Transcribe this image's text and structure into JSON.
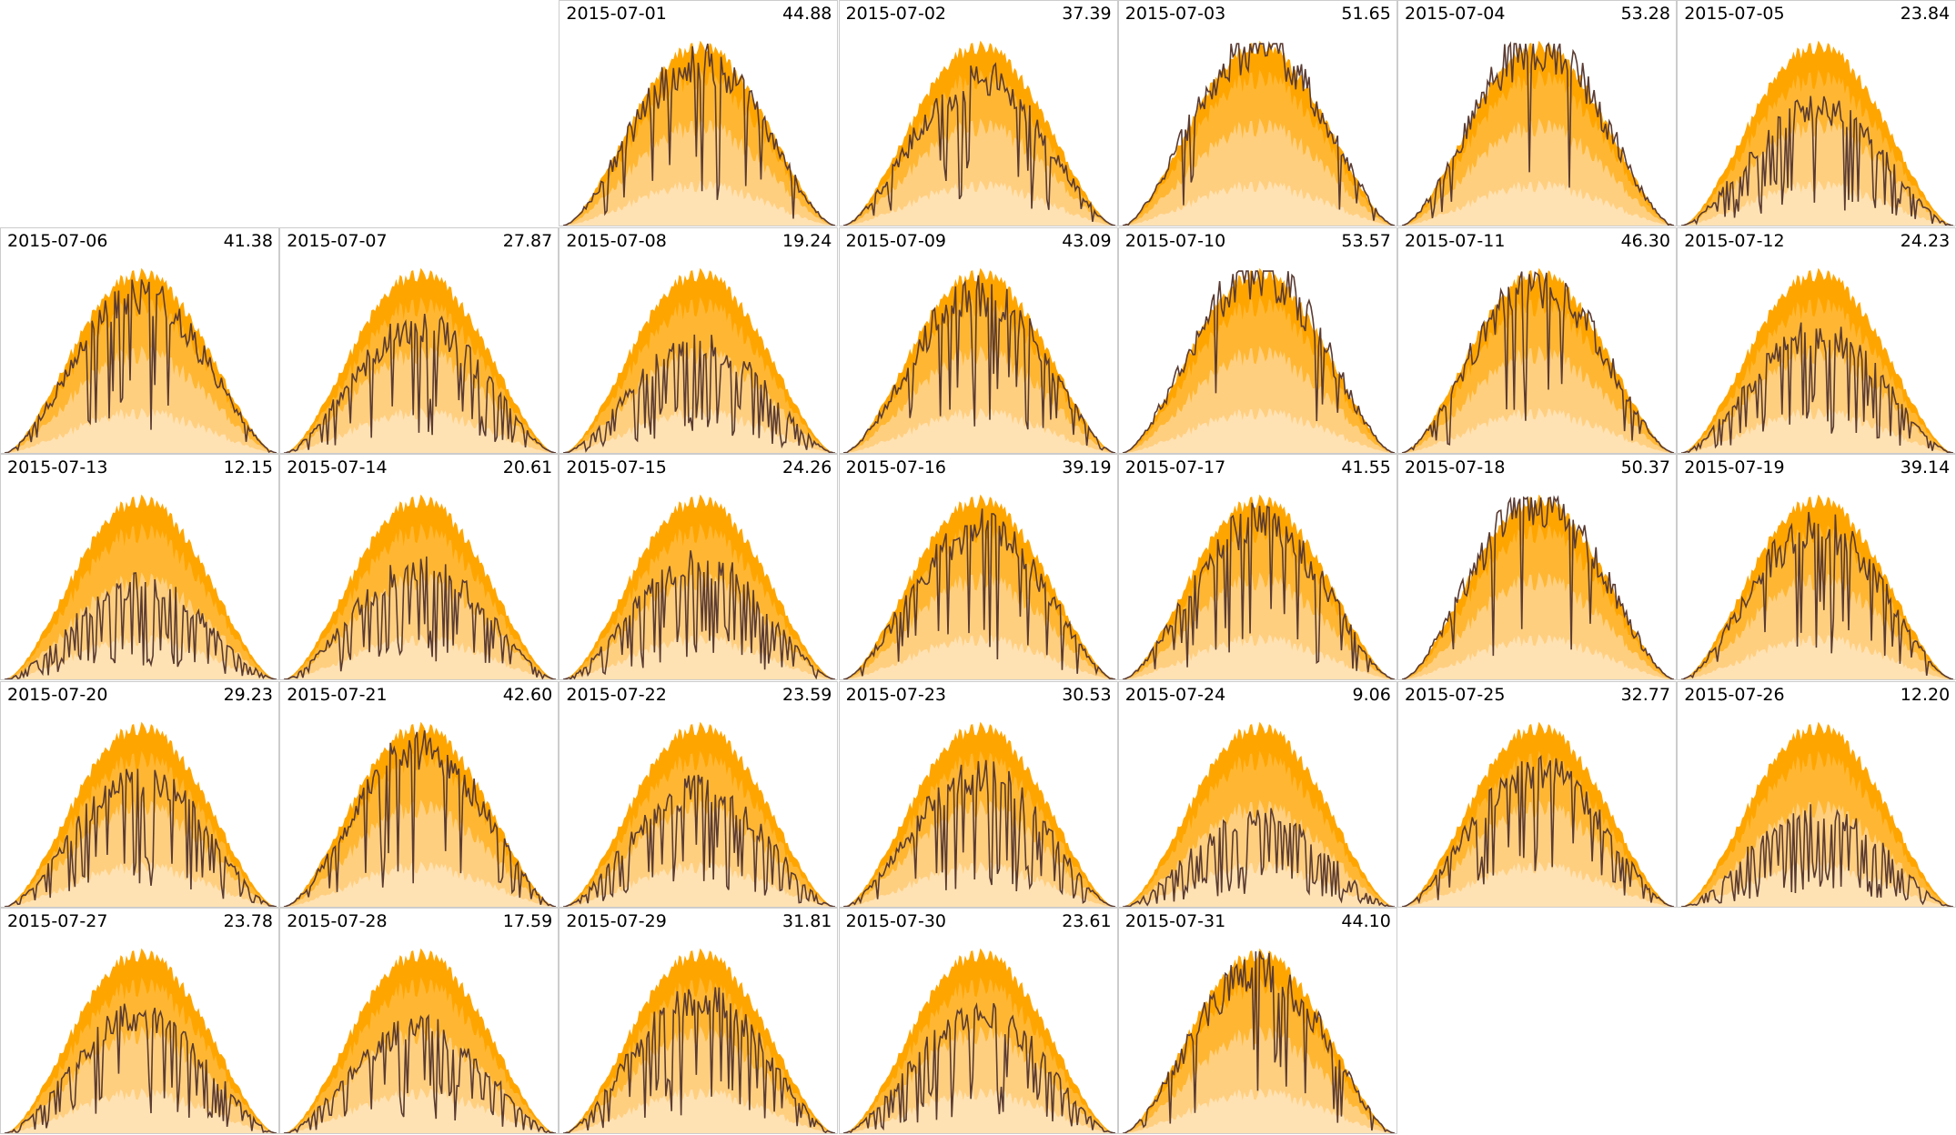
{
  "chart_data": {
    "type": "area",
    "month": "2015-07",
    "first_weekday_column": 2,
    "columns": 7,
    "colors": {
      "band_outer": "#ffa500",
      "band_upper": "#ffb733",
      "band_lower": "#ffcf80",
      "band_inner": "#ffe2b3",
      "line": "#5a3b32",
      "border": "#cccccc"
    },
    "days": [
      {
        "date": "2015-07-01",
        "value": "44.88",
        "fraction": 0.8694
      },
      {
        "date": "2015-07-02",
        "value": "37.39",
        "fraction": 0.7243
      },
      {
        "date": "2015-07-03",
        "value": "51.65",
        "fraction": 1.0006
      },
      {
        "date": "2015-07-04",
        "value": "53.28",
        "fraction": 1.0322
      },
      {
        "date": "2015-07-05",
        "value": "23.84",
        "fraction": 0.4618
      },
      {
        "date": "2015-07-06",
        "value": "41.38",
        "fraction": 0.8016
      },
      {
        "date": "2015-07-07",
        "value": "27.87",
        "fraction": 0.5399
      },
      {
        "date": "2015-07-08",
        "value": "19.24",
        "fraction": 0.3727
      },
      {
        "date": "2015-07-09",
        "value": "43.09",
        "fraction": 0.8348
      },
      {
        "date": "2015-07-10",
        "value": "53.57",
        "fraction": 1.0378
      },
      {
        "date": "2015-07-11",
        "value": "46.30",
        "fraction": 0.8969
      },
      {
        "date": "2015-07-12",
        "value": "24.23",
        "fraction": 0.4694
      },
      {
        "date": "2015-07-13",
        "value": "12.15",
        "fraction": 0.2354
      },
      {
        "date": "2015-07-14",
        "value": "20.61",
        "fraction": 0.3993
      },
      {
        "date": "2015-07-15",
        "value": "24.26",
        "fraction": 0.47
      },
      {
        "date": "2015-07-16",
        "value": "39.19",
        "fraction": 0.7592
      },
      {
        "date": "2015-07-17",
        "value": "41.55",
        "fraction": 0.8049
      },
      {
        "date": "2015-07-18",
        "value": "50.37",
        "fraction": 0.9758
      },
      {
        "date": "2015-07-19",
        "value": "39.14",
        "fraction": 0.7582
      },
      {
        "date": "2015-07-20",
        "value": "29.23",
        "fraction": 0.5663
      },
      {
        "date": "2015-07-21",
        "value": "42.60",
        "fraction": 0.8253
      },
      {
        "date": "2015-07-22",
        "value": "23.59",
        "fraction": 0.457
      },
      {
        "date": "2015-07-23",
        "value": "30.53",
        "fraction": 0.5914
      },
      {
        "date": "2015-07-24",
        "value": "9.06",
        "fraction": 0.1755
      },
      {
        "date": "2015-07-25",
        "value": "32.77",
        "fraction": 0.6348
      },
      {
        "date": "2015-07-26",
        "value": "12.20",
        "fraction": 0.2363
      },
      {
        "date": "2015-07-27",
        "value": "23.78",
        "fraction": 0.4607
      },
      {
        "date": "2015-07-28",
        "value": "17.59",
        "fraction": 0.3408
      },
      {
        "date": "2015-07-29",
        "value": "31.81",
        "fraction": 0.6162
      },
      {
        "date": "2015-07-30",
        "value": "23.61",
        "fraction": 0.4574
      },
      {
        "date": "2015-07-31",
        "value": "44.10",
        "fraction": 0.8543
      }
    ]
  }
}
